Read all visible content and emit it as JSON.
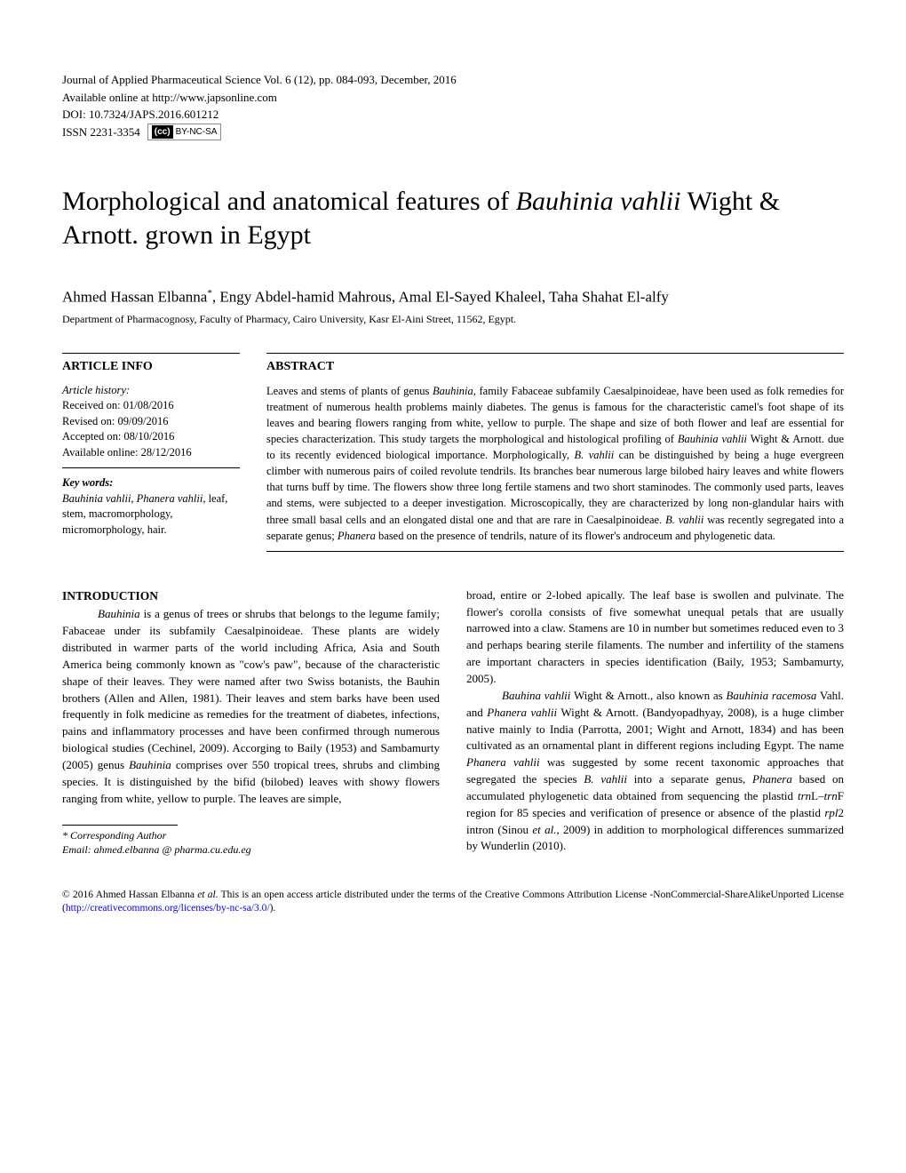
{
  "header": {
    "journal_line": "Journal of Applied Pharmaceutical Science Vol. 6 (12), pp. 084-093, December, 2016",
    "online_line": "Available online at http://www.japsonline.com",
    "doi_line": "DOI: 10.7324/JAPS.2016.601212",
    "issn_label": "ISSN 2231-3354",
    "cc_text": "BY-NC-SA"
  },
  "title_parts": {
    "pre": "Morphological and anatomical features of ",
    "italic": "Bauhinia vahlii",
    "post": " Wight & Arnott. grown in Egypt"
  },
  "authors": "Ahmed Hassan Elbanna",
  "authors_sup": "*",
  "authors_rest": ", Engy Abdel-hamid Mahrous, Amal El-Sayed Khaleel, Taha Shahat El-alfy",
  "affiliation": "Department of Pharmacognosy, Faculty of Pharmacy, Cairo University, Kasr El-Aini Street, 11562, Egypt.",
  "article_info_heading": "ARTICLE INFO",
  "abstract_heading": "ABSTRACT",
  "history": {
    "label": "Article history:",
    "received": "Received on: 01/08/2016",
    "revised": "Revised on: 09/09/2016",
    "accepted": "Accepted on: 08/10/2016",
    "online": "Available online: 28/12/2016"
  },
  "keywords": {
    "label": "Key words:",
    "italic_part": "Bauhinia vahlii, Phanera vahlii",
    "rest": ", leaf, stem, macromorphology, micromorphology, hair."
  },
  "abstract_html": "Leaves and stems of plants of genus <span class=\"italic\">Bauhinia</span>, family Fabaceae subfamily Caesalpinoideae, have been used as folk remedies for treatment of numerous health problems mainly diabetes. The genus is famous for the characteristic camel's foot shape of its leaves and bearing flowers ranging from white, yellow to purple. The shape and size of both flower and leaf are essential for species characterization. This study targets the morphological and histological profiling of <span class=\"italic\">Bauhinia vahlii</span> Wight & Arnott. due to its recently evidenced biological importance. Morphologically, <span class=\"italic\">B. vahlii</span> can be distinguished by being a huge evergreen climber with numerous pairs of coiled revolute tendrils. Its branches bear numerous large bilobed hairy leaves and white flowers that turns buff by time. The flowers show three long fertile stamens and two short staminodes. The commonly used parts, leaves and stems, were subjected to a deeper investigation. Microscopically, they are characterized by long non-glandular hairs with three small basal cells and an elongated distal one and that are rare in Caesalpinoideae. <span class=\"italic\">B. vahlii</span> was recently segregated into a separate genus; <span class=\"italic\">Phanera</span> based on the presence of tendrils, nature of its flower's androceum and phylogenetic data.",
  "intro_heading": "INTRODUCTION",
  "col1_html": "<span class=\"italic\">Bauhinia</span> is a genus of trees or shrubs that belongs to the legume family; Fabaceae under its subfamily Caesalpinoideae. These plants are widely distributed in warmer parts of the world including Africa, Asia and South America being commonly known as \"cow's paw\", because of the characteristic shape of their leaves. They were named after two Swiss botanists, the Bauhin brothers (Allen and Allen, 1981). Their leaves and stem barks have been used frequently in folk medicine as remedies for the treatment of diabetes, infections, pains and inflammatory processes and have been confirmed through numerous biological studies (Cechinel, 2009). Accorging to Baily (1953) and Sambamurty (2005) genus <span class=\"italic\">Bauhinia</span> comprises over 550 tropical trees, shrubs and climbing species. It is distinguished by the bifid (bilobed) leaves with showy flowers ranging from white, yellow to purple.  The  leaves are simple,",
  "col2_p1_html": "broad, entire or 2-lobed apically. The leaf base is swollen and pulvinate. The flower's corolla consists of five somewhat unequal petals that are usually narrowed into a claw. Stamens are 10 in number but sometimes reduced even to 3 and perhaps bearing sterile filaments. The number and infertility of the stamens are important characters in species identification (Baily, 1953; Sambamurty, 2005).",
  "col2_p2_html": "<span class=\"italic\">Bauhina vahlii</span> Wight & Arnott., also known as <span class=\"italic\">Bauhinia racemosa</span> Vahl. and <span class=\"italic\">Phanera vahlii</span> Wight & Arnott. (Bandyopadhyay, 2008), is a huge climber native mainly to India (Parrotta, 2001; Wight and Arnott, 1834) and has been cultivated as an ornamental plant in different regions including Egypt. The name <span class=\"italic\">Phanera vahlii</span> was suggested by some recent taxonomic approaches that segregated the species <span class=\"italic\">B. vahlii</span> into a separate genus, <span class=\"italic\">Phanera</span> based on accumulated phylogenetic data obtained from sequencing the plastid <span class=\"italic\">trn</span>L–<span class=\"italic\">trn</span>F region for 85 species and verification of presence or absence of the plastid <span class=\"italic\">rpl</span>2 intron (Sinou <span class=\"italic\">et al.</span>, 2009) in addition to morphological differences summarized by Wunderlin (2010).",
  "footnote": {
    "label": "* Corresponding Author",
    "email_label": "Email: ",
    "email": "ahmed.elbanna @ pharma.cu.edu.eg"
  },
  "license_html": "© 2016 Ahmed Hassan Elbanna <span class=\"italic\">et al.</span> This is an open access article distributed under the terms of the Creative Commons Attribution License -NonCommercial-ShareAlikeUnported License (<a href=\"#\">http://creativecommons.org/licenses/by-nc-sa/3.0/</a>)."
}
